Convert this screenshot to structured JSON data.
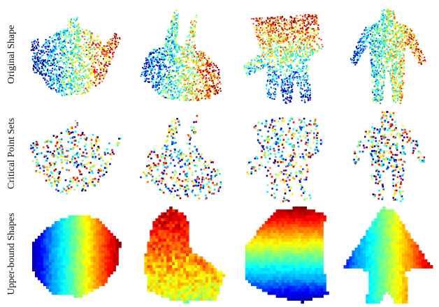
{
  "rows": [
    {
      "label": "Original Shape"
    },
    {
      "label": "Critical Point Sets"
    },
    {
      "label": "Upper-bound Shapes"
    }
  ],
  "shapes": [
    "teapot",
    "bunny",
    "hand",
    "human"
  ],
  "colormap": [
    "#00007f",
    "#0000ff",
    "#00a0ff",
    "#00ffff",
    "#7fff7f",
    "#ffff00",
    "#ff8000",
    "#ff0000",
    "#7f0000"
  ]
}
